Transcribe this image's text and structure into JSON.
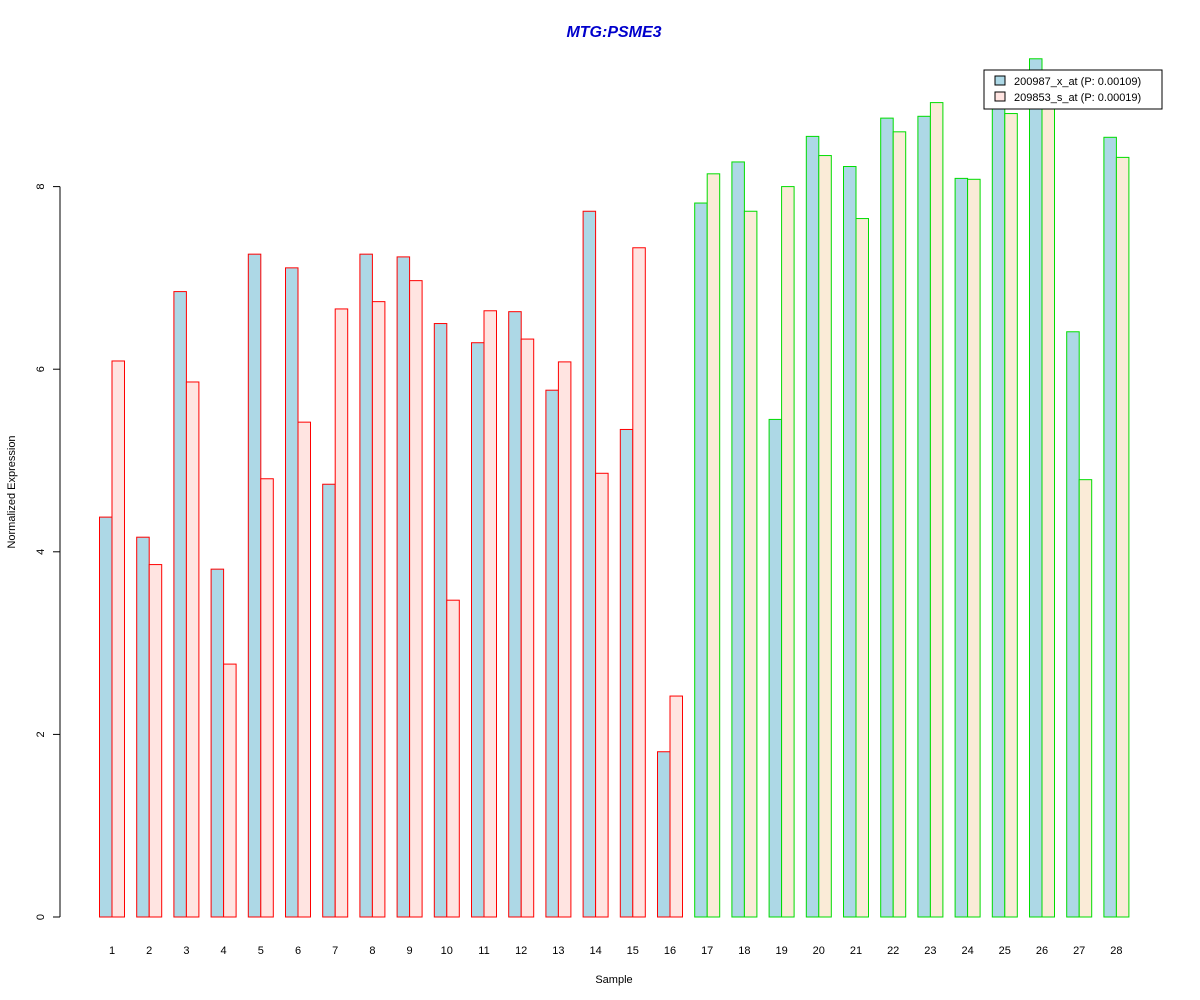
{
  "chart_data": {
    "type": "bar",
    "title": "MTG:PSME3",
    "xlabel": "Sample",
    "ylabel": "Normalized Expression",
    "ylim": [
      0,
      9.5
    ],
    "yticks": [
      0,
      2,
      4,
      6,
      8
    ],
    "grid": false,
    "legend_position": "top-right",
    "categories": [
      "1",
      "2",
      "3",
      "4",
      "5",
      "6",
      "7",
      "8",
      "9",
      "10",
      "11",
      "12",
      "13",
      "14",
      "15",
      "16",
      "17",
      "18",
      "19",
      "20",
      "21",
      "22",
      "23",
      "24",
      "25",
      "26",
      "27",
      "28"
    ],
    "series": [
      {
        "name": "200987_x_at (P: 0.00109)",
        "fill": "#add8e6",
        "values": [
          4.38,
          4.16,
          6.85,
          3.81,
          7.26,
          7.11,
          4.74,
          7.26,
          7.23,
          6.5,
          6.29,
          6.63,
          5.77,
          7.73,
          5.34,
          1.81,
          7.82,
          8.27,
          5.45,
          8.55,
          8.22,
          8.75,
          8.77,
          8.09,
          8.95,
          9.4,
          6.41,
          8.54
        ]
      },
      {
        "name": "209853_s_at (P: 0.00019)",
        "fill_group_1": "#ffe4e1",
        "fill_group_2": "#faebd7",
        "values": [
          6.09,
          3.86,
          5.86,
          2.77,
          4.8,
          5.42,
          6.66,
          6.74,
          6.97,
          3.47,
          6.64,
          6.33,
          6.08,
          4.86,
          7.33,
          2.42,
          8.14,
          7.73,
          8.0,
          8.34,
          7.65,
          8.6,
          8.92,
          8.08,
          8.8,
          8.95,
          4.79,
          8.32
        ]
      }
    ],
    "group_border_colors": [
      "#ff0000",
      "#00dd00"
    ],
    "group_sizes": [
      16,
      12
    ]
  }
}
